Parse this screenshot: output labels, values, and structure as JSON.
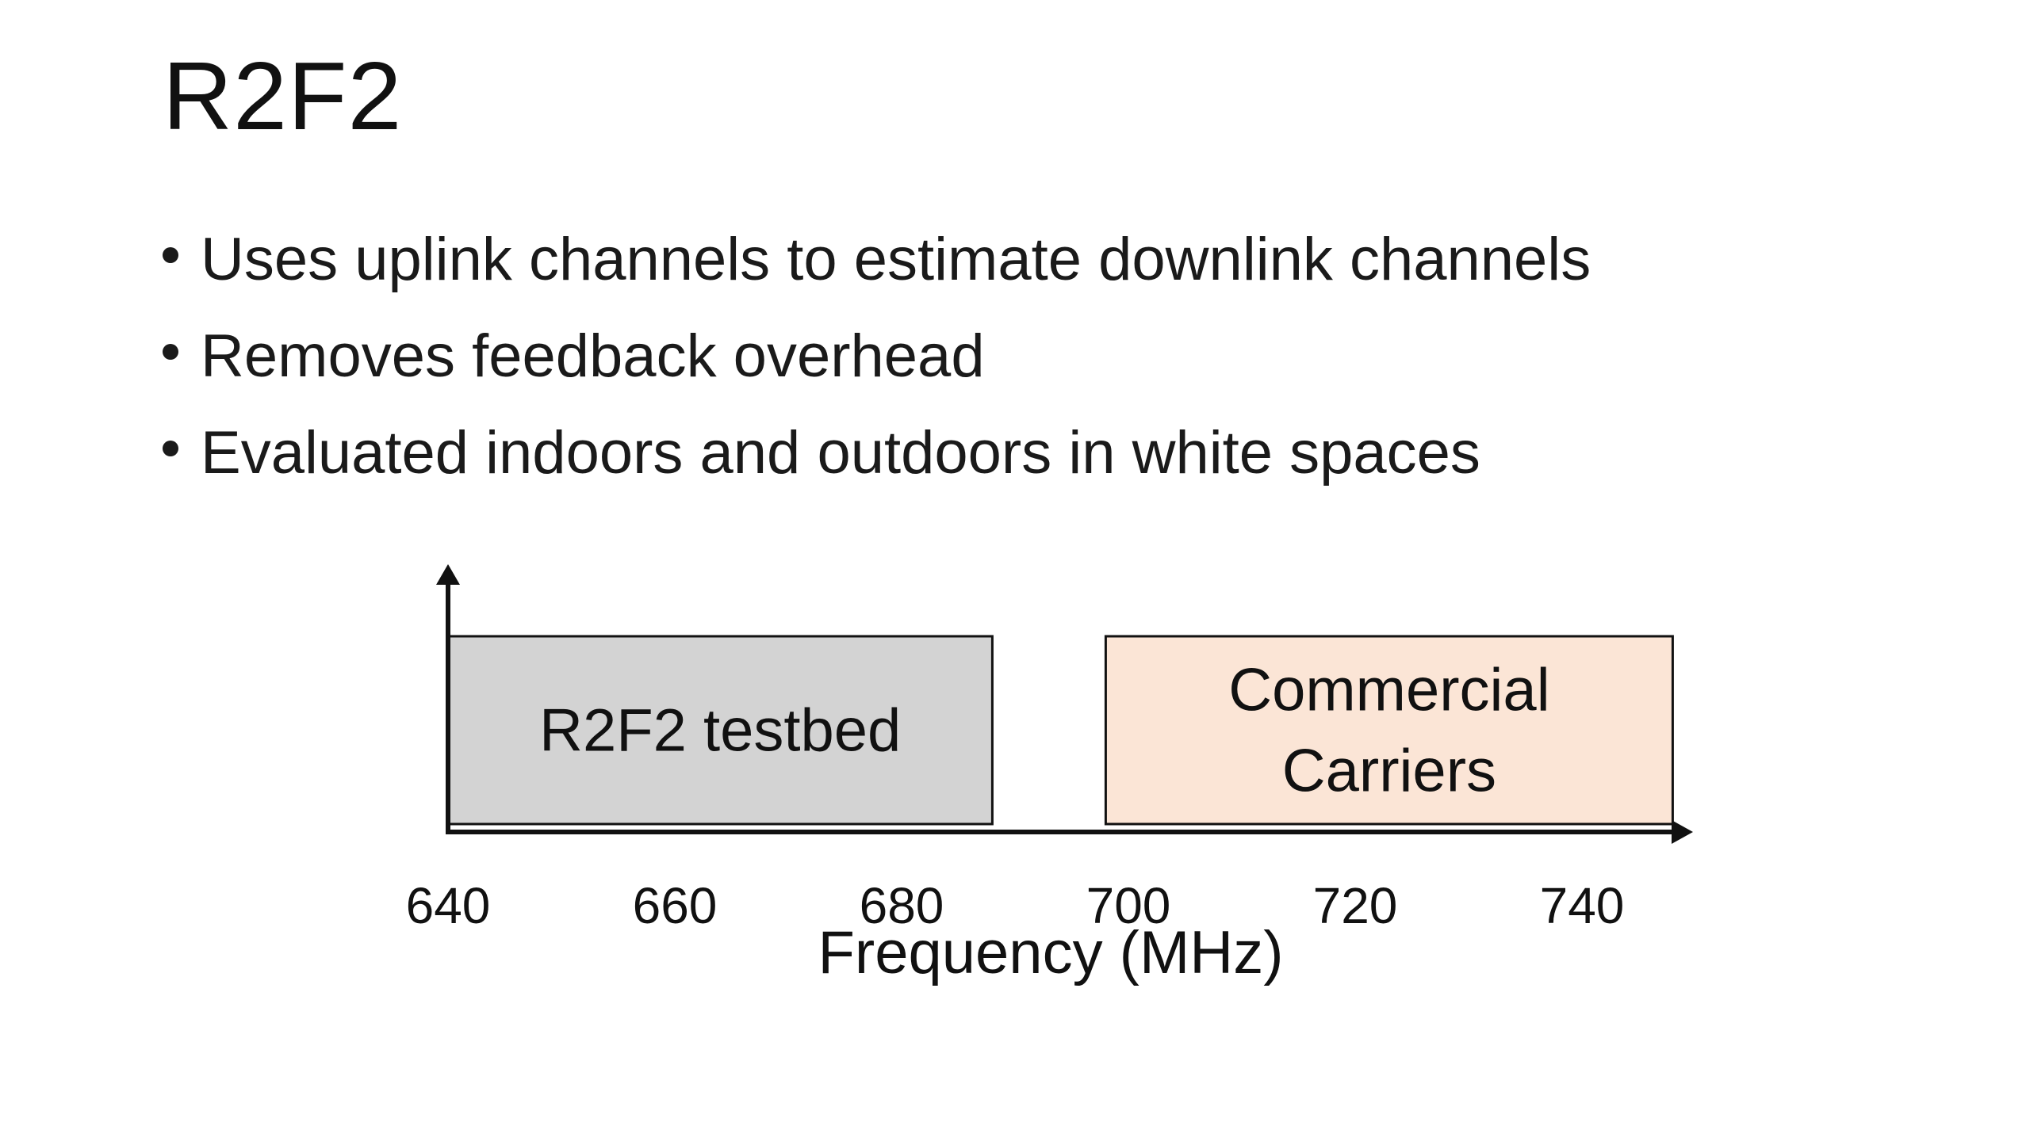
{
  "slide": {
    "title": "R2F2",
    "bullets": [
      "Uses uplink channels to estimate downlink channels",
      "Removes feedback overhead",
      "Evaluated indoors and outdoors in white spaces"
    ]
  },
  "diagram": {
    "axis_label": "Frequency (MHz)",
    "x_range": [
      640,
      750
    ],
    "ticks": [
      640,
      660,
      680,
      700,
      720,
      740
    ],
    "bands": [
      {
        "label_lines": [
          "R2F2 testbed"
        ],
        "start": 640,
        "end": 688,
        "fill": "#d3d3d3"
      },
      {
        "label_lines": [
          "Commercial",
          "Carriers"
        ],
        "start": 698,
        "end": 748,
        "fill": "#fbe5d6"
      }
    ]
  }
}
